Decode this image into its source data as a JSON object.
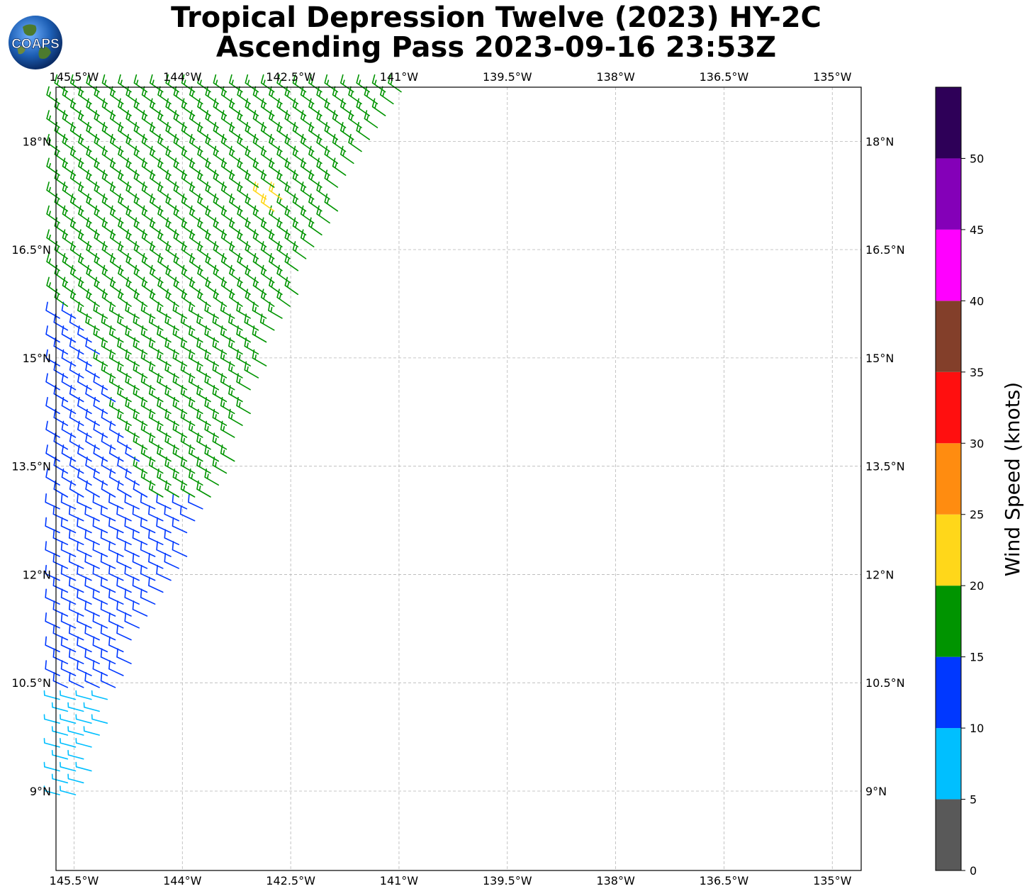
{
  "title": {
    "line1": "Tropical Depression Twelve (2023) HY-2C",
    "line2": "Ascending Pass 2023-09-16 23:53Z"
  },
  "logo": {
    "text": "COAPS"
  },
  "map": {
    "lon_range": [
      -145.75,
      -134.6
    ],
    "lat_range": [
      7.9,
      18.75
    ],
    "lon_ticks": [
      {
        "v": -145.5,
        "label": "145.5°W"
      },
      {
        "v": -144.0,
        "label": "144°W"
      },
      {
        "v": -142.5,
        "label": "142.5°W"
      },
      {
        "v": -141.0,
        "label": "141°W"
      },
      {
        "v": -139.5,
        "label": "139.5°W"
      },
      {
        "v": -138.0,
        "label": "138°W"
      },
      {
        "v": -136.5,
        "label": "136.5°W"
      },
      {
        "v": -135.0,
        "label": "135°W"
      }
    ],
    "lat_ticks": [
      {
        "v": 9.0,
        "label": "9°N"
      },
      {
        "v": 10.5,
        "label": "10.5°N"
      },
      {
        "v": 12.0,
        "label": "12°N"
      },
      {
        "v": 13.5,
        "label": "13.5°N"
      },
      {
        "v": 15.0,
        "label": "15°N"
      },
      {
        "v": 16.5,
        "label": "16.5°N"
      },
      {
        "v": 18.0,
        "label": "18°N"
      }
    ],
    "grid": true
  },
  "colorbar": {
    "label": "Wind Speed (knots)",
    "ticks": [
      0,
      5,
      10,
      15,
      20,
      25,
      30,
      35,
      40,
      45,
      50
    ],
    "bins": [
      {
        "min": 0,
        "max": 5,
        "color": "#595959"
      },
      {
        "min": 5,
        "max": 10,
        "color": "#00bfff"
      },
      {
        "min": 10,
        "max": 15,
        "color": "#0038ff"
      },
      {
        "min": 15,
        "max": 20,
        "color": "#009400"
      },
      {
        "min": 20,
        "max": 25,
        "color": "#ffd71a"
      },
      {
        "min": 25,
        "max": 30,
        "color": "#ff8c10"
      },
      {
        "min": 30,
        "max": 35,
        "color": "#ff0f0f"
      },
      {
        "min": 35,
        "max": 40,
        "color": "#833f2a"
      },
      {
        "min": 40,
        "max": 45,
        "color": "#ff00ff"
      },
      {
        "min": 45,
        "max": 50,
        "color": "#8400b8"
      },
      {
        "min": 50,
        "max": 55,
        "color": "#2e0058"
      }
    ]
  },
  "chart_data": {
    "type": "scatter",
    "description_of_marks": "wind barbs over swath",
    "swath": {
      "west_lon": -145.75,
      "east_edge": [
        {
          "lat": 9.0,
          "lon": -145.35
        },
        {
          "lat": 10.5,
          "lon": -144.85
        },
        {
          "lat": 12.0,
          "lon": -144.05
        },
        {
          "lat": 13.5,
          "lon": -143.3
        },
        {
          "lat": 15.0,
          "lon": -142.8
        },
        {
          "lat": 16.5,
          "lon": -142.1
        },
        {
          "lat": 18.0,
          "lon": -141.35
        },
        {
          "lat": 18.75,
          "lon": -140.8
        }
      ],
      "spacing_deg": 0.22
    },
    "wind_regions": [
      {
        "lat_min": 8.9,
        "lat_max": 10.3,
        "speed_kt": 8,
        "dir_deg": 75
      },
      {
        "lat_min": 10.3,
        "lat_max": 13.0,
        "speed_kt": 12,
        "dir_deg": 65
      },
      {
        "lat_min": 13.0,
        "lat_max": 15.6,
        "speed_kt": 12,
        "dir_deg": 60,
        "green_east_of_lon": -144.4
      },
      {
        "lat_min": 15.6,
        "lat_max": 18.75,
        "speed_kt": 17,
        "dir_deg": 55
      },
      {
        "lat_min": 17.0,
        "lat_max": 17.35,
        "lon_min": -142.9,
        "lon_max": -142.55,
        "speed_kt": 21,
        "dir_deg": 55
      }
    ]
  }
}
